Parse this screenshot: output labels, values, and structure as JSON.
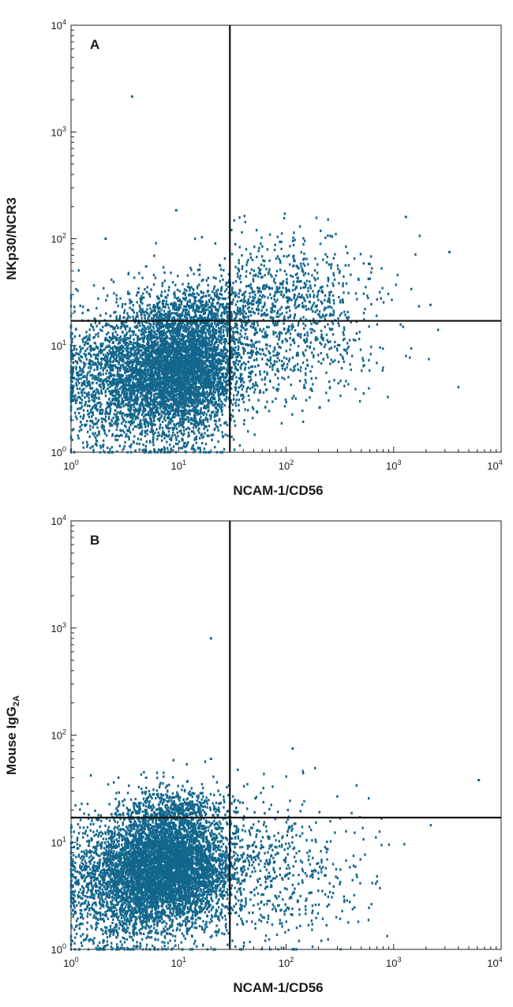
{
  "chart_data": [
    {
      "type": "scatter",
      "panel_label": "A",
      "xlabel": "NCAM-1/CD56",
      "ylabel": "NKp30/NCR3",
      "ylabel_sub": "",
      "xscale": "log",
      "yscale": "log",
      "xlim": [
        1,
        10000
      ],
      "ylim": [
        1,
        10000
      ],
      "tick_base": "10",
      "tick_exponents": [
        "0",
        "1",
        "2",
        "3",
        "4"
      ],
      "grid": false,
      "quadrant_gate": {
        "x": 30,
        "y": 17
      },
      "point_color": "#13668c",
      "outliers": [
        [
          3.7,
          2150
        ],
        [
          9.5,
          185
        ],
        [
          1300,
          160
        ],
        [
          2.1,
          100
        ],
        [
          5,
          55
        ],
        [
          3300,
          75
        ],
        [
          2200,
          24
        ]
      ],
      "populations": [
        {
          "count": 4200,
          "cx": 11,
          "cy": 6.0,
          "sx": 0.27,
          "sy": 0.3,
          "xmin": 1,
          "ymin": 1
        },
        {
          "count": 1800,
          "cx": 3,
          "cy": 5.0,
          "sx": 0.3,
          "sy": 0.33,
          "xmin": 1,
          "ymin": 1
        },
        {
          "count": 900,
          "cx": 80,
          "cy": 14,
          "sx": 0.45,
          "sy": 0.33,
          "xmin": 1,
          "ymin": 1
        },
        {
          "count": 320,
          "cx": 110,
          "cy": 40,
          "sx": 0.38,
          "sy": 0.22,
          "xmin": 1,
          "ymin": 1
        },
        {
          "count": 350,
          "cx": 15,
          "cy": 22,
          "sx": 0.3,
          "sy": 0.12,
          "xmin": 1,
          "ymin": 1
        }
      ]
    },
    {
      "type": "scatter",
      "panel_label": "B",
      "xlabel": "NCAM-1/CD56",
      "ylabel": "Mouse IgG",
      "ylabel_sub": "2A",
      "xscale": "log",
      "yscale": "log",
      "xlim": [
        1,
        10000
      ],
      "ylim": [
        1,
        10000
      ],
      "tick_base": "10",
      "tick_exponents": [
        "0",
        "1",
        "2",
        "3",
        "4"
      ],
      "grid": false,
      "quadrant_gate": {
        "x": 30,
        "y": 17
      },
      "point_color": "#13668c",
      "outliers": [
        [
          20,
          800
        ],
        [
          115,
          75
        ],
        [
          6200,
          38
        ],
        [
          20,
          60
        ],
        [
          5,
          40
        ]
      ],
      "populations": [
        {
          "count": 5000,
          "cx": 8,
          "cy": 6.0,
          "sx": 0.3,
          "sy": 0.28,
          "xmin": 1,
          "ymin": 1
        },
        {
          "count": 1500,
          "cx": 3,
          "cy": 4.0,
          "sx": 0.3,
          "sy": 0.32,
          "xmin": 1,
          "ymin": 1
        },
        {
          "count": 600,
          "cx": 70,
          "cy": 5,
          "sx": 0.45,
          "sy": 0.35,
          "xmin": 1,
          "ymin": 1
        },
        {
          "count": 300,
          "cx": 10,
          "cy": 20,
          "sx": 0.25,
          "sy": 0.1,
          "xmin": 1,
          "ymin": 1
        }
      ]
    }
  ]
}
